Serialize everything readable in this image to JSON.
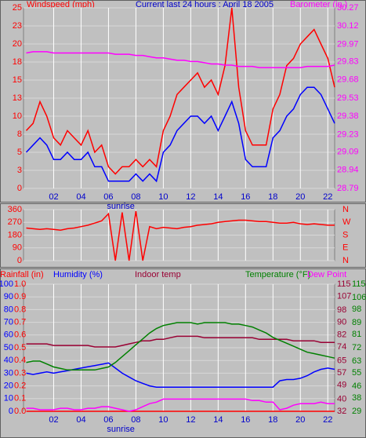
{
  "chart_data": [
    {
      "type": "line",
      "title": "Current last 24 hours : April 18 2005",
      "ylabel": "Windspeed (mph)",
      "y2label": "Barometer (in.)",
      "xlim": [
        -0.2,
        22.5
      ],
      "xticks": [
        {
          "value": 2,
          "label": "02"
        },
        {
          "value": 4,
          "label": "04"
        },
        {
          "value": 6,
          "label": "06"
        },
        {
          "value": 8,
          "label": "08"
        },
        10,
        12,
        14,
        16,
        18,
        20,
        22
      ],
      "ylim": [
        0,
        25
      ],
      "yticks": [
        0,
        {
          "value": 2.5,
          "label": "3"
        },
        5,
        {
          "value": 7.5,
          "label": "8"
        },
        10,
        {
          "value": 12.5,
          "label": "13"
        },
        15,
        {
          "value": 17.5,
          "label": "18"
        },
        20,
        {
          "value": 22.5,
          "label": "23"
        },
        25
      ],
      "y2lim": [
        28.79,
        30.27
      ],
      "y2ticks": [
        28.79,
        28.94,
        29.09,
        29.23,
        29.38,
        29.53,
        29.68,
        29.83,
        29.97,
        30.12,
        30.27
      ],
      "grid": true,
      "annotations": [
        {
          "text": "sunrise",
          "x": 6.9
        }
      ],
      "x": [
        0,
        0.5,
        1,
        1.5,
        2,
        2.5,
        3,
        3.5,
        4,
        4.5,
        5,
        5.5,
        6,
        6.5,
        7,
        7.5,
        8,
        8.5,
        9,
        9.5,
        10,
        10.5,
        11,
        11.5,
        12,
        12.5,
        13,
        13.5,
        14,
        14.5,
        15,
        15.5,
        16,
        16.5,
        17,
        17.5,
        18,
        18.5,
        19,
        19.5,
        20,
        20.5,
        21,
        21.5,
        22,
        22.5
      ],
      "series": [
        {
          "color": "#ff0000",
          "axis": "y",
          "values": [
            8,
            9,
            12,
            10,
            7,
            6,
            8,
            7,
            6,
            8,
            5,
            6,
            3,
            2,
            3,
            3,
            4,
            3,
            4,
            3,
            8,
            10,
            13,
            14,
            15,
            16,
            14,
            15,
            13,
            17,
            25,
            14,
            8,
            6,
            6,
            6,
            11,
            13,
            17,
            18,
            20,
            21,
            22,
            20,
            18,
            14
          ]
        },
        {
          "color": "#0000ff",
          "axis": "y",
          "values": [
            5,
            6,
            7,
            6,
            4,
            4,
            5,
            4,
            4,
            5,
            3,
            3,
            1,
            1,
            1,
            1,
            2,
            1,
            2,
            1,
            5,
            6,
            8,
            9,
            10,
            10,
            9,
            10,
            8,
            10,
            12,
            9,
            4,
            3,
            3,
            3,
            7,
            8,
            10,
            11,
            13,
            14,
            14,
            13,
            11,
            9
          ]
        },
        {
          "color": "#ff00ff",
          "axis": "y2",
          "values": [
            29.9,
            29.91,
            29.91,
            29.91,
            29.9,
            29.9,
            29.9,
            29.9,
            29.9,
            29.9,
            29.9,
            29.9,
            29.9,
            29.89,
            29.89,
            29.89,
            29.88,
            29.88,
            29.87,
            29.86,
            29.86,
            29.85,
            29.84,
            29.84,
            29.83,
            29.83,
            29.82,
            29.81,
            29.81,
            29.8,
            29.8,
            29.79,
            29.79,
            29.79,
            29.78,
            29.78,
            29.78,
            29.78,
            29.78,
            29.78,
            29.78,
            29.79,
            29.79,
            29.79,
            29.79,
            29.8
          ]
        }
      ]
    },
    {
      "type": "line",
      "xlim": [
        -0.2,
        22.5
      ],
      "xticks": [
        {
          "value": 2,
          "label": "02"
        },
        {
          "value": 4,
          "label": "04"
        },
        {
          "value": 6,
          "label": "06"
        },
        {
          "value": 8,
          "label": "08"
        },
        10,
        12,
        14,
        16,
        18,
        20,
        22
      ],
      "ylim": [
        0,
        360
      ],
      "yticks": [
        0,
        90,
        180,
        270,
        360
      ],
      "y2lim": [
        0,
        360
      ],
      "y2ticks": [
        {
          "value": 360,
          "label": "N"
        },
        {
          "value": 270,
          "label": "W"
        },
        {
          "value": 180,
          "label": "S"
        },
        {
          "value": 90,
          "label": "E"
        },
        {
          "value": 0,
          "label": "N"
        }
      ],
      "grid": true,
      "x": [
        0,
        0.5,
        1,
        1.5,
        2,
        2.5,
        3,
        3.5,
        4,
        4.5,
        5,
        5.5,
        6,
        6.5,
        7,
        7.5,
        8,
        8.5,
        9,
        9.5,
        10,
        10.5,
        11,
        11.5,
        12,
        12.5,
        13,
        13.5,
        14,
        14.5,
        15,
        15.5,
        16,
        16.5,
        17,
        17.5,
        18,
        18.5,
        19,
        19.5,
        20,
        20.5,
        21,
        21.5,
        22,
        22.5
      ],
      "series": [
        {
          "color": "#ff0000",
          "axis": "y",
          "values": [
            230,
            225,
            220,
            225,
            220,
            215,
            225,
            230,
            240,
            250,
            265,
            280,
            330,
            0,
            340,
            0,
            350,
            0,
            240,
            225,
            235,
            230,
            225,
            235,
            240,
            250,
            255,
            260,
            270,
            275,
            280,
            285,
            285,
            280,
            275,
            275,
            270,
            265,
            265,
            270,
            260,
            255,
            260,
            255,
            250,
            250
          ]
        }
      ]
    },
    {
      "type": "line",
      "xlim": [
        -0.2,
        22.5
      ],
      "xticks": [
        {
          "value": 2,
          "label": "02"
        },
        {
          "value": 4,
          "label": "04"
        },
        {
          "value": 6,
          "label": "06"
        },
        {
          "value": 8,
          "label": "08"
        },
        10,
        12,
        14,
        16,
        18,
        20,
        22
      ],
      "ylim": [
        0,
        100
      ],
      "yticks": [
        0,
        10,
        20,
        30,
        40,
        50,
        60,
        70,
        80,
        90,
        100
      ],
      "y4lim": [
        0,
        1
      ],
      "y4ticks": [
        {
          "value": 0,
          "label": "0.0"
        },
        0.1,
        0.2,
        0.3,
        0.4,
        0.5,
        0.6,
        0.7,
        0.8,
        0.9,
        {
          "value": 1,
          "label": "1.0"
        }
      ],
      "y2lim": [
        32,
        115
      ],
      "y2ticks": [
        32,
        40,
        49,
        57,
        65,
        74,
        82,
        90,
        98,
        107,
        115
      ],
      "y3lim": [
        29,
        115
      ],
      "y3ticks": [
        29,
        38,
        46,
        55,
        63,
        72,
        81,
        89,
        98,
        106,
        115
      ],
      "grid": true,
      "annotations": [
        {
          "text": "sunrise",
          "x": 6.9
        }
      ],
      "x": [
        0,
        0.5,
        1,
        1.5,
        2,
        2.5,
        3,
        3.5,
        4,
        4.5,
        5,
        5.5,
        6,
        6.5,
        7,
        7.5,
        8,
        8.5,
        9,
        9.5,
        10,
        10.5,
        11,
        11.5,
        12,
        12.5,
        13,
        13.5,
        14,
        14.5,
        15,
        15.5,
        16,
        16.5,
        17,
        17.5,
        18,
        18.5,
        19,
        19.5,
        20,
        20.5,
        21,
        21.5,
        22,
        22.5
      ],
      "series": [
        {
          "name": "Rainfall (in)",
          "color": "#ff0000",
          "axis": "y4",
          "values": [
            0,
            0,
            0,
            0,
            0,
            0,
            0,
            0,
            0,
            0,
            0,
            0,
            0,
            0,
            0,
            0,
            0,
            0,
            0,
            0,
            0,
            0,
            0,
            0,
            0,
            0,
            0,
            0,
            0,
            0,
            0,
            0,
            0,
            0,
            0,
            0,
            0,
            0,
            0,
            0,
            0,
            0,
            0,
            0,
            0,
            0
          ]
        },
        {
          "name": "Humidity (%)",
          "color": "#0000ff",
          "axis": "y",
          "values": [
            30,
            29,
            30,
            31,
            30,
            31,
            32,
            33,
            34,
            35,
            36,
            37,
            38,
            34,
            30,
            27,
            24,
            22,
            20,
            19,
            19,
            19,
            19,
            19,
            19,
            19,
            19,
            19,
            19,
            19,
            19,
            19,
            19,
            19,
            19,
            19,
            19,
            24,
            25,
            25,
            26,
            28,
            31,
            33,
            34,
            33
          ]
        },
        {
          "name": "Indoor temp",
          "color": "#990033",
          "axis": "y2",
          "values": [
            76,
            76,
            76,
            76,
            75,
            75,
            75,
            75,
            75,
            75,
            74,
            74,
            74,
            74,
            75,
            76,
            77,
            78,
            78,
            79,
            79,
            80,
            81,
            81,
            81,
            81,
            80,
            80,
            80,
            80,
            80,
            80,
            80,
            80,
            79,
            79,
            79,
            79,
            79,
            78,
            78,
            78,
            78,
            77,
            77,
            77
          ]
        },
        {
          "name": "Temperature (°F)",
          "color": "#008000",
          "axis": "y3",
          "values": [
            62,
            63,
            63,
            61,
            59,
            58,
            57,
            57,
            57,
            57,
            57,
            58,
            59,
            62,
            66,
            70,
            74,
            78,
            82,
            85,
            87,
            88,
            89,
            89,
            89,
            88,
            89,
            89,
            89,
            89,
            88,
            88,
            87,
            86,
            84,
            82,
            79,
            77,
            75,
            73,
            71,
            69,
            68,
            67,
            66,
            65
          ]
        },
        {
          "name": "Dew Point",
          "color": "#ff00ff",
          "axis": "y2",
          "values": [
            34,
            34,
            33,
            33,
            33,
            34,
            34,
            33,
            33,
            34,
            34,
            35,
            35,
            34,
            33,
            32,
            33,
            35,
            37,
            38,
            40,
            40,
            40,
            40,
            40,
            40,
            40,
            40,
            40,
            40,
            40,
            40,
            40,
            39,
            39,
            38,
            38,
            33,
            34,
            36,
            37,
            37,
            37,
            38,
            37,
            37
          ]
        }
      ]
    }
  ]
}
